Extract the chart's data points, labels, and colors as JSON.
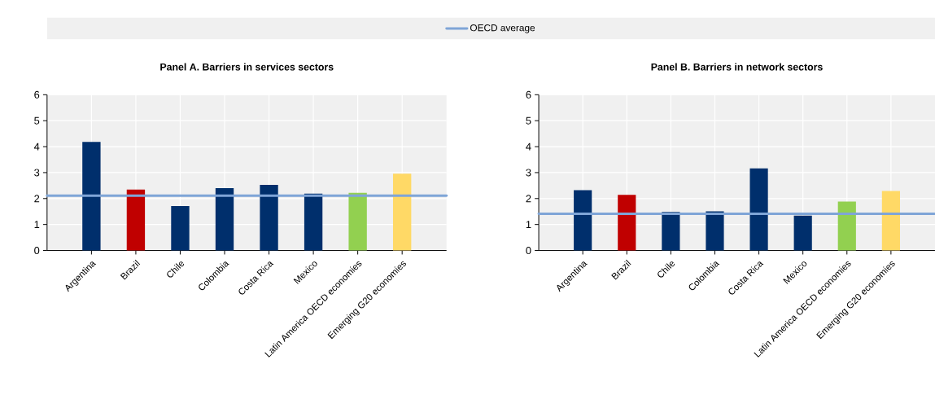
{
  "chart_data": [
    {
      "type": "bar",
      "title": "Panel A. Barriers in services sectors",
      "categories": [
        "Argentina",
        "Brazil",
        "Chile",
        "Colombia",
        "Costa Rica",
        "Mexico",
        "Latin America OECD economies",
        "Emerging G20 economies"
      ],
      "values": [
        4.18,
        2.35,
        1.71,
        2.4,
        2.53,
        2.19,
        2.22,
        2.96
      ],
      "colors": [
        "#002f6c",
        "#c00000",
        "#002f6c",
        "#002f6c",
        "#002f6c",
        "#002f6c",
        "#92d050",
        "#ffd966"
      ],
      "ylim": [
        0,
        6
      ],
      "yticks": [
        0,
        1,
        2,
        3,
        4,
        5,
        6
      ],
      "grid": true,
      "legend": "top",
      "ref_lines": [
        {
          "axis": "y",
          "value": 2.11,
          "label": "OECD average",
          "color": "#7fa5d7"
        }
      ]
    },
    {
      "type": "bar",
      "title": "Panel B. Barriers in network sectors",
      "categories": [
        "Argentina",
        "Brazil",
        "Chile",
        "Colombia",
        "Costa Rica",
        "Mexico",
        "Latin America OECD economies",
        "Emerging G20 economies"
      ],
      "values": [
        2.32,
        2.14,
        1.48,
        1.51,
        3.16,
        1.34,
        1.88,
        2.29
      ],
      "colors": [
        "#002f6c",
        "#c00000",
        "#002f6c",
        "#002f6c",
        "#002f6c",
        "#002f6c",
        "#92d050",
        "#ffd966"
      ],
      "ylim": [
        0,
        6
      ],
      "yticks": [
        0,
        1,
        2,
        3,
        4,
        5,
        6
      ],
      "grid": true,
      "ref_lines": [
        {
          "axis": "y",
          "value": 1.41,
          "color": "#7fa5d7"
        }
      ]
    }
  ]
}
